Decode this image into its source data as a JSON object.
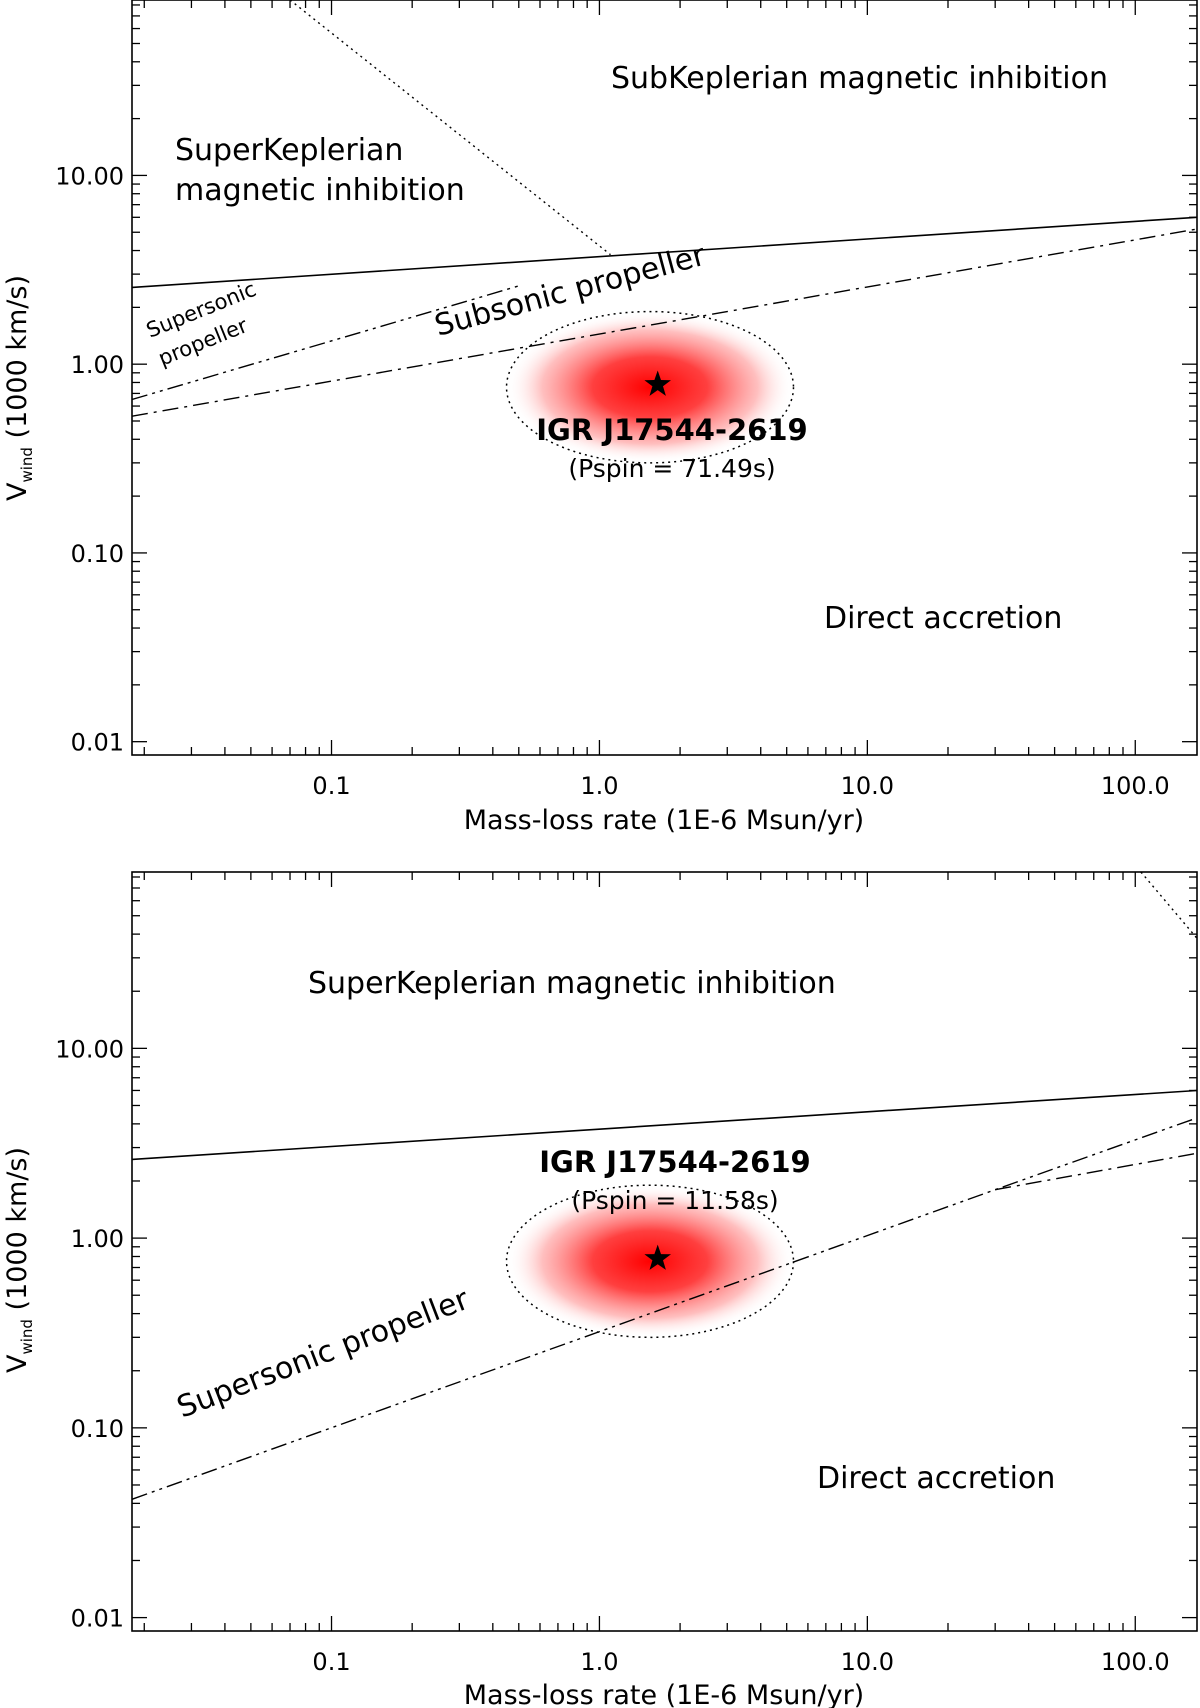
{
  "chart_data": [
    {
      "type": "line",
      "panel": "top",
      "title": "",
      "xlabel": "Mass-loss rate (1E-6 Msun/yr)",
      "ylabel_main": "V",
      "ylabel_sub": "wind",
      "ylabel_unit": " (1000 km/s)",
      "xscale": "log",
      "yscale": "log",
      "xlim": [
        0.018,
        170
      ],
      "ylim": [
        0.0085,
        85
      ],
      "xticks": [
        0.1,
        1,
        10,
        100
      ],
      "xtick_labels": [
        "0.1",
        "1.0",
        "10.0",
        "100.0"
      ],
      "yticks": [
        0.01,
        0.1,
        1,
        10
      ],
      "ytick_labels": [
        "0.01",
        "0.10",
        "1.00",
        "10.00"
      ],
      "series": [
        {
          "name": "superkeplerian-boundary",
          "style": "solid",
          "x": [
            0.018,
            170
          ],
          "y": [
            2.55,
            6.0
          ]
        },
        {
          "name": "supersonic-propeller-boundary",
          "style": "dash-dot-dot",
          "x": [
            0.018,
            0.5
          ],
          "y": [
            0.65,
            2.6
          ]
        },
        {
          "name": "subsonic-propeller-boundary",
          "style": "dash-dot",
          "x": [
            0.018,
            170
          ],
          "y": [
            0.53,
            5.2
          ]
        },
        {
          "name": "subkeplerian-boundary",
          "style": "dotted",
          "x": [
            0.07,
            1.1
          ],
          "y": [
            85,
            3.8
          ]
        }
      ],
      "source": {
        "name": "IGR J17544-2619",
        "pspin": "(Pspin = 71.49s)",
        "x": 1.65,
        "y": 0.78,
        "x_range": [
          0.45,
          5.3
        ],
        "y_range": [
          0.3,
          1.9
        ]
      },
      "regions": {
        "subkeplerian": "SubKeplerian magnetic inhibition",
        "superkeplerian_line1": "SuperKeplerian",
        "superkeplerian_line2": "magnetic inhibition",
        "supersonic_line1": "Supersonic",
        "supersonic_line2": "propeller",
        "subsonic": "Subsonic propeller",
        "direct": "Direct accretion"
      }
    },
    {
      "type": "line",
      "panel": "bottom",
      "title": "",
      "xlabel": "Mass-loss rate (1E-6 Msun/yr)",
      "ylabel_main": "V",
      "ylabel_sub": "wind",
      "ylabel_unit": " (1000 km/s)",
      "xscale": "log",
      "yscale": "log",
      "xlim": [
        0.018,
        170
      ],
      "ylim": [
        0.0085,
        85
      ],
      "xticks": [
        0.1,
        1,
        10,
        100
      ],
      "xtick_labels": [
        "0.1",
        "1.0",
        "10.0",
        "100.0"
      ],
      "yticks": [
        0.01,
        0.1,
        1,
        10
      ],
      "ytick_labels": [
        "0.01",
        "0.10",
        "1.00",
        "10.00"
      ],
      "series": [
        {
          "name": "superkeplerian-boundary",
          "style": "solid",
          "x": [
            0.018,
            170
          ],
          "y": [
            2.6,
            6.0
          ]
        },
        {
          "name": "supersonic-propeller-boundary",
          "style": "dash-dot-dot",
          "x": [
            0.018,
            30,
            170
          ],
          "y": [
            0.042,
            1.8,
            4.3
          ]
        },
        {
          "name": "subsonic-propeller-boundary",
          "style": "dash-dot",
          "x": [
            30,
            170
          ],
          "y": [
            1.8,
            2.8
          ]
        },
        {
          "name": "subkeplerian-boundary",
          "style": "dotted",
          "x": [
            105,
            170
          ],
          "y": [
            85,
            38
          ]
        }
      ],
      "source": {
        "name": "IGR J17544-2619",
        "pspin": "(Pspin = 11.58s)",
        "x": 1.65,
        "y": 0.78,
        "x_range": [
          0.45,
          5.3
        ],
        "y_range": [
          0.3,
          1.9
        ]
      },
      "regions": {
        "superkeplerian": "SuperKeplerian magnetic inhibition",
        "supersonic": "Supersonic propeller",
        "direct": "Direct accretion"
      }
    }
  ]
}
